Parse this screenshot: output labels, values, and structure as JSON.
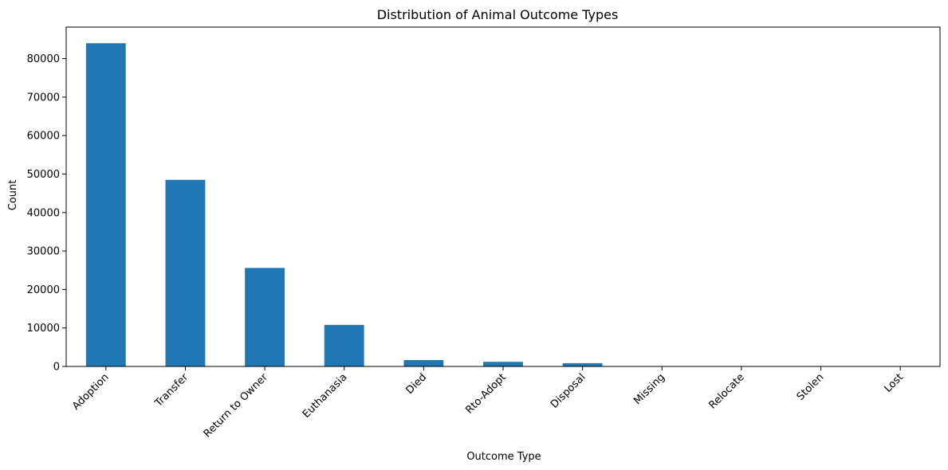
{
  "chart_data": {
    "type": "bar",
    "title": "Distribution of Animal Outcome Types",
    "xlabel": "Outcome Type",
    "ylabel": "Count",
    "categories": [
      "Adoption",
      "Transfer",
      "Return to Owner",
      "Euthanasia",
      "Died",
      "Rto-Adopt",
      "Disposal",
      "Missing",
      "Relocate",
      "Stolen",
      "Lost"
    ],
    "values": [
      84000,
      48500,
      25600,
      10800,
      1650,
      1200,
      850,
      70,
      20,
      10,
      5
    ],
    "ylim": [
      0,
      88200
    ],
    "yticks": [
      0,
      10000,
      20000,
      30000,
      40000,
      50000,
      60000,
      70000,
      80000
    ],
    "ytick_labels": [
      "0",
      "10000",
      "20000",
      "30000",
      "40000",
      "50000",
      "60000",
      "70000",
      "80000"
    ],
    "grid": false,
    "legend": "none",
    "bar_color": "#1f77b4"
  }
}
